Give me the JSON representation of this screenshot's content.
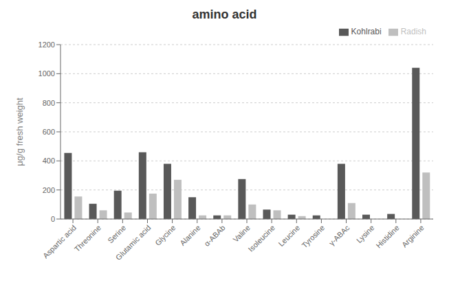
{
  "chart_data": {
    "type": "bar",
    "title": "amino acid",
    "ylabel": "μg/g fresh weight",
    "categories": [
      "Aspartic acid",
      "Threonine",
      "Serine",
      "Glutamic acid",
      "Glycine",
      "Alanine",
      "α-ABAb",
      "Valine",
      "Isoleucine",
      "Leucine",
      "Tyrosine",
      "γ-ABAc",
      "Lysine",
      "Histidine",
      "Arginine"
    ],
    "series": [
      {
        "name": "Kohlrabi",
        "color": "#595959",
        "values": [
          455,
          105,
          195,
          460,
          380,
          150,
          25,
          275,
          65,
          30,
          25,
          380,
          30,
          35,
          1040
        ]
      },
      {
        "name": "Radish",
        "color": "#bfbfbf",
        "values": [
          155,
          60,
          45,
          175,
          270,
          25,
          25,
          100,
          60,
          20,
          0,
          110,
          0,
          0,
          320
        ]
      }
    ],
    "ylim": [
      0,
      1200
    ],
    "yticks": [
      0,
      200,
      400,
      600,
      800,
      1000,
      1200
    ],
    "grid": true,
    "legend": "upper right"
  }
}
